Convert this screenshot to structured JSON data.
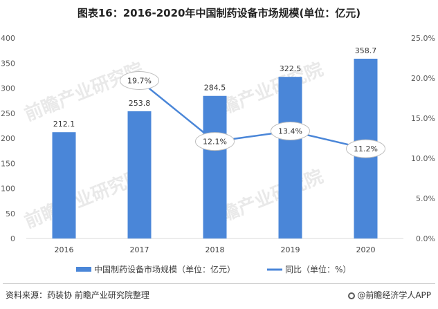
{
  "chart_data": {
    "type": "bar",
    "title": "图表16：2016-2020年中国制药设备市场规模(单位：亿元)",
    "categories": [
      "2016",
      "2017",
      "2018",
      "2019",
      "2020"
    ],
    "series": [
      {
        "name": "中国制药设备市场规模（单位：亿元）",
        "type": "bar",
        "values": [
          212.1,
          253.8,
          284.5,
          322.5,
          358.7
        ],
        "labels": [
          "212.1",
          "253.8",
          "284.5",
          "322.5",
          "358.7"
        ],
        "axis": "left",
        "color": "#4a86d8"
      },
      {
        "name": "同比（单位：%）",
        "type": "line",
        "values": [
          null,
          19.7,
          12.1,
          13.4,
          11.2
        ],
        "labels": [
          "",
          "19.7%",
          "12.1%",
          "13.4%",
          "11.2%"
        ],
        "axis": "right",
        "color": "#4a86d8"
      }
    ],
    "y_left": {
      "range": [
        0,
        400
      ],
      "ticks": [
        "0",
        "50",
        "100",
        "150",
        "200",
        "250",
        "300",
        "350",
        "400"
      ]
    },
    "y_right": {
      "range": [
        0,
        25
      ],
      "ticks": [
        "0.0%",
        "5.0%",
        "10.0%",
        "15.0%",
        "20.0%",
        "25.0%"
      ]
    },
    "grid": false,
    "legend": "bottom"
  },
  "footer": {
    "source": "资料来源：药装协 前瞻产业研究院整理",
    "brand": "@前瞻经济学人APP"
  },
  "watermark": "前瞻产业研究院"
}
